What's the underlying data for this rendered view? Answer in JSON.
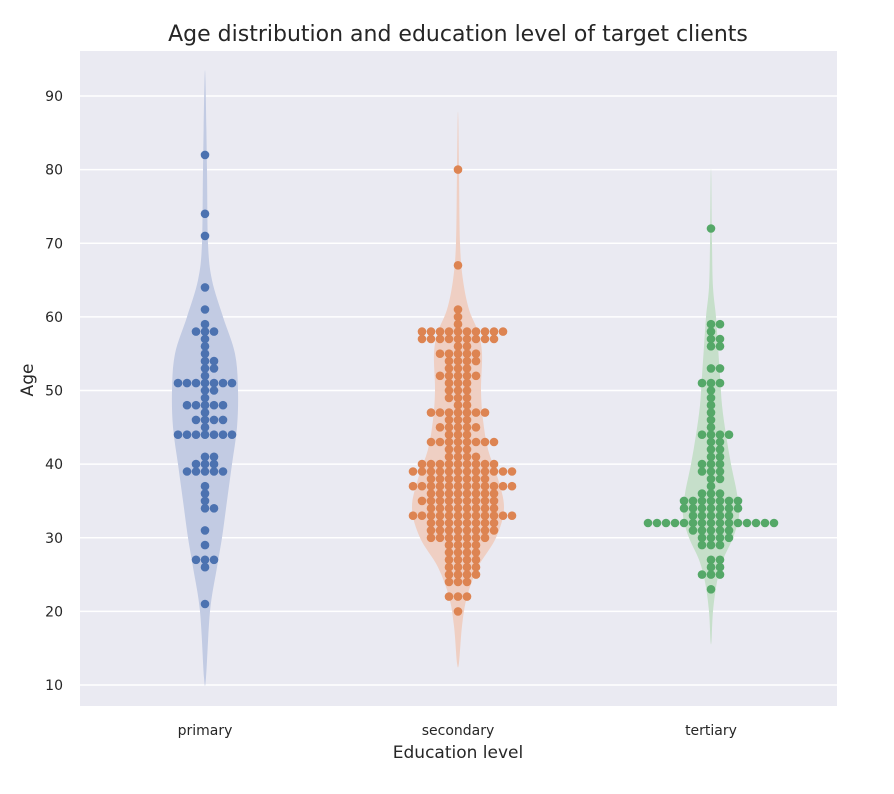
{
  "chart_data": {
    "type": "violin+swarm",
    "title": "Age distribution and education level of target clients",
    "xlabel": "Education level",
    "ylabel": "Age",
    "ylim": [
      7,
      96
    ],
    "yticks": [
      10,
      20,
      30,
      40,
      50,
      60,
      70,
      80,
      90
    ],
    "grid": true,
    "legend": "none",
    "categories": [
      "primary",
      "secondary",
      "tertiary"
    ],
    "series": [
      {
        "color": "#4c72b0",
        "fill": "#c2cbe3",
        "violin": {
          "min": 11,
          "max": 92,
          "density": [
            [
              11,
              0.01
            ],
            [
              20,
              0.05
            ],
            [
              26,
              0.12
            ],
            [
              30,
              0.17
            ],
            [
              35,
              0.22
            ],
            [
              40,
              0.27
            ],
            [
              45,
              0.32
            ],
            [
              50,
              0.33
            ],
            [
              55,
              0.3
            ],
            [
              60,
              0.18
            ],
            [
              65,
              0.07
            ],
            [
              70,
              0.03
            ],
            [
              80,
              0.02
            ],
            [
              92,
              0.005
            ]
          ]
        },
        "points": [
          82,
          74,
          71,
          64,
          61,
          59,
          58,
          58,
          58,
          57,
          56,
          55,
          54,
          54,
          53,
          53,
          52,
          51,
          51,
          51,
          51,
          51,
          51,
          51,
          50,
          50,
          49,
          48,
          48,
          48,
          48,
          48,
          47,
          46,
          46,
          46,
          46,
          45,
          44,
          44,
          44,
          44,
          44,
          44,
          44,
          41,
          41,
          40,
          40,
          40,
          39,
          39,
          39,
          39,
          39,
          37,
          36,
          35,
          34,
          34,
          31,
          29,
          27,
          27,
          27,
          26,
          21
        ]
      },
      {
        "color": "#dd8452",
        "fill": "#efcfc3",
        "violin": {
          "min": 13,
          "max": 87,
          "density": [
            [
              13,
              0.01
            ],
            [
              18,
              0.04
            ],
            [
              22,
              0.09
            ],
            [
              26,
              0.2
            ],
            [
              30,
              0.38
            ],
            [
              34,
              0.46
            ],
            [
              38,
              0.4
            ],
            [
              42,
              0.3
            ],
            [
              46,
              0.25
            ],
            [
              50,
              0.23
            ],
            [
              55,
              0.24
            ],
            [
              58,
              0.2
            ],
            [
              61,
              0.11
            ],
            [
              65,
              0.05
            ],
            [
              70,
              0.02
            ],
            [
              80,
              0.01
            ],
            [
              87,
              0.003
            ]
          ]
        },
        "points": [
          80,
          67,
          61,
          60,
          59,
          58,
          58,
          58,
          58,
          58,
          58,
          58,
          58,
          58,
          58,
          57,
          57,
          57,
          57,
          57,
          57,
          57,
          57,
          57,
          56,
          56,
          55,
          55,
          55,
          55,
          55,
          54,
          54,
          54,
          54,
          53,
          53,
          53,
          52,
          52,
          52,
          52,
          52,
          51,
          51,
          51,
          50,
          50,
          50,
          49,
          49,
          49,
          48,
          48,
          47,
          47,
          47,
          47,
          47,
          47,
          47,
          46,
          46,
          46,
          45,
          45,
          45,
          45,
          45,
          44,
          44,
          44,
          43,
          43,
          43,
          43,
          43,
          43,
          43,
          43,
          42,
          42,
          42,
          41,
          41,
          41,
          41,
          40,
          40,
          40,
          40,
          40,
          40,
          40,
          40,
          40,
          39,
          39,
          39,
          39,
          39,
          39,
          39,
          39,
          39,
          39,
          39,
          39,
          38,
          38,
          38,
          38,
          38,
          38,
          38,
          37,
          37,
          37,
          37,
          37,
          37,
          37,
          37,
          37,
          37,
          37,
          37,
          36,
          36,
          36,
          36,
          36,
          36,
          36,
          36,
          35,
          35,
          35,
          35,
          35,
          35,
          35,
          35,
          35,
          34,
          34,
          34,
          34,
          34,
          34,
          34,
          34,
          33,
          33,
          33,
          33,
          33,
          33,
          33,
          33,
          33,
          33,
          33,
          33,
          32,
          32,
          32,
          32,
          32,
          32,
          32,
          32,
          31,
          31,
          31,
          31,
          31,
          31,
          31,
          31,
          30,
          30,
          30,
          30,
          30,
          30,
          30,
          29,
          29,
          29,
          29,
          28,
          28,
          28,
          28,
          27,
          27,
          27,
          27,
          26,
          26,
          26,
          26,
          25,
          25,
          25,
          25,
          24,
          24,
          24,
          22,
          22,
          22,
          20
        ]
      },
      {
        "color": "#55a868",
        "fill": "#c6dfca",
        "violin": {
          "min": 16,
          "max": 79,
          "density": [
            [
              16,
              0.005
            ],
            [
              20,
              0.02
            ],
            [
              24,
              0.06
            ],
            [
              27,
              0.12
            ],
            [
              30,
              0.22
            ],
            [
              33,
              0.28
            ],
            [
              36,
              0.26
            ],
            [
              40,
              0.2
            ],
            [
              44,
              0.15
            ],
            [
              48,
              0.11
            ],
            [
              52,
              0.09
            ],
            [
              56,
              0.07
            ],
            [
              60,
              0.05
            ],
            [
              64,
              0.02
            ],
            [
              70,
              0.01
            ],
            [
              79,
              0.003
            ]
          ]
        },
        "points": [
          72,
          59,
          59,
          58,
          57,
          57,
          56,
          56,
          53,
          53,
          51,
          51,
          51,
          50,
          49,
          48,
          47,
          46,
          45,
          44,
          44,
          44,
          44,
          43,
          43,
          42,
          42,
          41,
          41,
          40,
          40,
          40,
          39,
          39,
          39,
          38,
          38,
          37,
          36,
          36,
          36,
          35,
          35,
          35,
          35,
          35,
          35,
          35,
          34,
          34,
          34,
          34,
          34,
          34,
          34,
          33,
          33,
          33,
          33,
          33,
          32,
          32,
          32,
          32,
          32,
          32,
          32,
          32,
          32,
          32,
          32,
          32,
          32,
          32,
          32,
          31,
          31,
          31,
          31,
          31,
          30,
          30,
          30,
          30,
          29,
          29,
          29,
          27,
          27,
          26,
          26,
          25,
          25,
          25,
          23
        ]
      }
    ]
  }
}
